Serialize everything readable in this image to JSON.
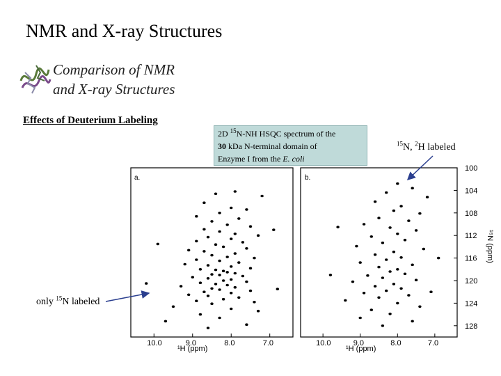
{
  "slide": {
    "title": "NMR and X-ray Structures",
    "subtitle_line1": "Comparison of NMR",
    "subtitle_line2": "and X-ray Structures",
    "section_heading": "Effects of Deuterium Labeling"
  },
  "callout": {
    "line1_prefix": "2D ",
    "line1_sup": "15",
    "line1_rest": "N-NH HSQC spectrum of the",
    "line2_bold": "30",
    "line2_rest": " kDa N-terminal domain of",
    "line3_prefix": "Enzyme I from the ",
    "line3_italic": "E. coli"
  },
  "labels": {
    "left_prefix": "only ",
    "left_sup": "15",
    "left_rest": "N labeled",
    "right_sup1": "15",
    "right_mid": "N, ",
    "right_sup2": "2",
    "right_rest": "H labeled"
  },
  "figure": {
    "panel_a_tag": "a.",
    "panel_b_tag": "b.",
    "x_axis_label": "¹H (ppm)",
    "y_axis_label": "¹⁵N (ppm)",
    "x_ticks": [
      "10.0",
      "9.0",
      "8.0",
      "7.0"
    ],
    "y_ticks": [
      "100",
      "104",
      "108",
      "112",
      "116",
      "120",
      "124",
      "128"
    ]
  },
  "chart_data": [
    {
      "type": "scatter",
      "panel": "a",
      "xlabel": "¹H (ppm)",
      "ylabel": "¹⁵N (ppm)",
      "xlim": [
        10.6,
        6.4
      ],
      "ylim": [
        100,
        130
      ],
      "points": [
        [
          7.9,
          104.2
        ],
        [
          8.4,
          104.6
        ],
        [
          7.2,
          105.0
        ],
        [
          8.7,
          106.2
        ],
        [
          8.0,
          107.1
        ],
        [
          7.6,
          107.4
        ],
        [
          8.3,
          108.0
        ],
        [
          8.9,
          108.6
        ],
        [
          7.8,
          109.0
        ],
        [
          8.5,
          109.5
        ],
        [
          8.1,
          110.1
        ],
        [
          7.5,
          110.4
        ],
        [
          8.7,
          110.9
        ],
        [
          8.3,
          111.3
        ],
        [
          7.9,
          111.7
        ],
        [
          7.3,
          112.0
        ],
        [
          8.6,
          112.3
        ],
        [
          8.0,
          112.6
        ],
        [
          8.9,
          113.0
        ],
        [
          7.7,
          113.2
        ],
        [
          8.4,
          113.6
        ],
        [
          8.2,
          114.0
        ],
        [
          7.6,
          114.3
        ],
        [
          9.1,
          114.6
        ],
        [
          8.7,
          114.8
        ],
        [
          7.9,
          115.2
        ],
        [
          8.5,
          115.5
        ],
        [
          8.1,
          115.8
        ],
        [
          7.4,
          116.0
        ],
        [
          8.9,
          116.3
        ],
        [
          8.3,
          116.5
        ],
        [
          7.8,
          116.8
        ],
        [
          9.2,
          117.1
        ],
        [
          8.6,
          117.3
        ],
        [
          8.0,
          117.5
        ],
        [
          7.5,
          117.8
        ],
        [
          8.8,
          118.0
        ],
        [
          8.4,
          118.1
        ],
        [
          8.2,
          118.3
        ],
        [
          8.1,
          118.5
        ],
        [
          7.9,
          118.7
        ],
        [
          8.5,
          118.9
        ],
        [
          8.3,
          119.0
        ],
        [
          7.7,
          119.2
        ],
        [
          9.0,
          119.4
        ],
        [
          8.6,
          119.6
        ],
        [
          8.0,
          119.8
        ],
        [
          8.2,
          120.0
        ],
        [
          7.6,
          120.2
        ],
        [
          8.8,
          120.4
        ],
        [
          8.4,
          120.6
        ],
        [
          8.1,
          120.8
        ],
        [
          9.3,
          121.0
        ],
        [
          7.9,
          121.2
        ],
        [
          8.5,
          121.4
        ],
        [
          8.3,
          121.6
        ],
        [
          7.5,
          121.8
        ],
        [
          8.7,
          122.0
        ],
        [
          8.0,
          122.2
        ],
        [
          9.1,
          122.5
        ],
        [
          8.6,
          122.7
        ],
        [
          7.8,
          123.0
        ],
        [
          8.2,
          123.3
        ],
        [
          8.9,
          123.6
        ],
        [
          7.4,
          123.8
        ],
        [
          8.5,
          124.1
        ],
        [
          9.5,
          124.6
        ],
        [
          8.0,
          125.0
        ],
        [
          7.3,
          125.4
        ],
        [
          8.8,
          126.0
        ],
        [
          8.3,
          126.6
        ],
        [
          9.7,
          127.2
        ],
        [
          7.6,
          127.8
        ],
        [
          8.6,
          128.4
        ],
        [
          10.2,
          120.5
        ],
        [
          9.9,
          113.5
        ],
        [
          6.9,
          111.0
        ],
        [
          6.8,
          121.5
        ]
      ]
    },
    {
      "type": "scatter",
      "panel": "b",
      "xlabel": "¹H (ppm)",
      "ylabel": "¹⁵N (ppm)",
      "xlim": [
        10.6,
        6.4
      ],
      "ylim": [
        100,
        130
      ],
      "points": [
        [
          8.0,
          102.8
        ],
        [
          7.6,
          103.6
        ],
        [
          8.3,
          104.4
        ],
        [
          7.2,
          105.2
        ],
        [
          8.6,
          106.0
        ],
        [
          7.9,
          106.8
        ],
        [
          8.1,
          107.6
        ],
        [
          7.4,
          108.1
        ],
        [
          8.5,
          108.9
        ],
        [
          7.7,
          109.4
        ],
        [
          8.9,
          110.0
        ],
        [
          8.2,
          110.6
        ],
        [
          7.5,
          111.1
        ],
        [
          8.0,
          111.7
        ],
        [
          8.7,
          112.2
        ],
        [
          7.8,
          112.8
        ],
        [
          8.4,
          113.3
        ],
        [
          9.1,
          113.9
        ],
        [
          7.3,
          114.4
        ],
        [
          8.1,
          114.9
        ],
        [
          8.6,
          115.4
        ],
        [
          7.9,
          115.9
        ],
        [
          8.3,
          116.3
        ],
        [
          9.0,
          116.8
        ],
        [
          7.6,
          117.2
        ],
        [
          8.5,
          117.6
        ],
        [
          8.0,
          118.0
        ],
        [
          8.2,
          118.4
        ],
        [
          7.8,
          118.8
        ],
        [
          8.8,
          119.1
        ],
        [
          8.4,
          119.5
        ],
        [
          7.5,
          119.9
        ],
        [
          9.2,
          120.2
        ],
        [
          8.1,
          120.6
        ],
        [
          8.6,
          121.0
        ],
        [
          7.9,
          121.4
        ],
        [
          8.3,
          121.8
        ],
        [
          8.9,
          122.2
        ],
        [
          7.7,
          122.6
        ],
        [
          8.5,
          123.0
        ],
        [
          9.4,
          123.5
        ],
        [
          8.0,
          124.0
        ],
        [
          7.4,
          124.6
        ],
        [
          8.7,
          125.2
        ],
        [
          8.2,
          125.9
        ],
        [
          9.0,
          126.6
        ],
        [
          7.6,
          127.2
        ],
        [
          8.4,
          128.0
        ],
        [
          9.8,
          119.0
        ],
        [
          6.9,
          116.0
        ],
        [
          7.1,
          122.0
        ],
        [
          9.6,
          110.5
        ]
      ]
    }
  ]
}
